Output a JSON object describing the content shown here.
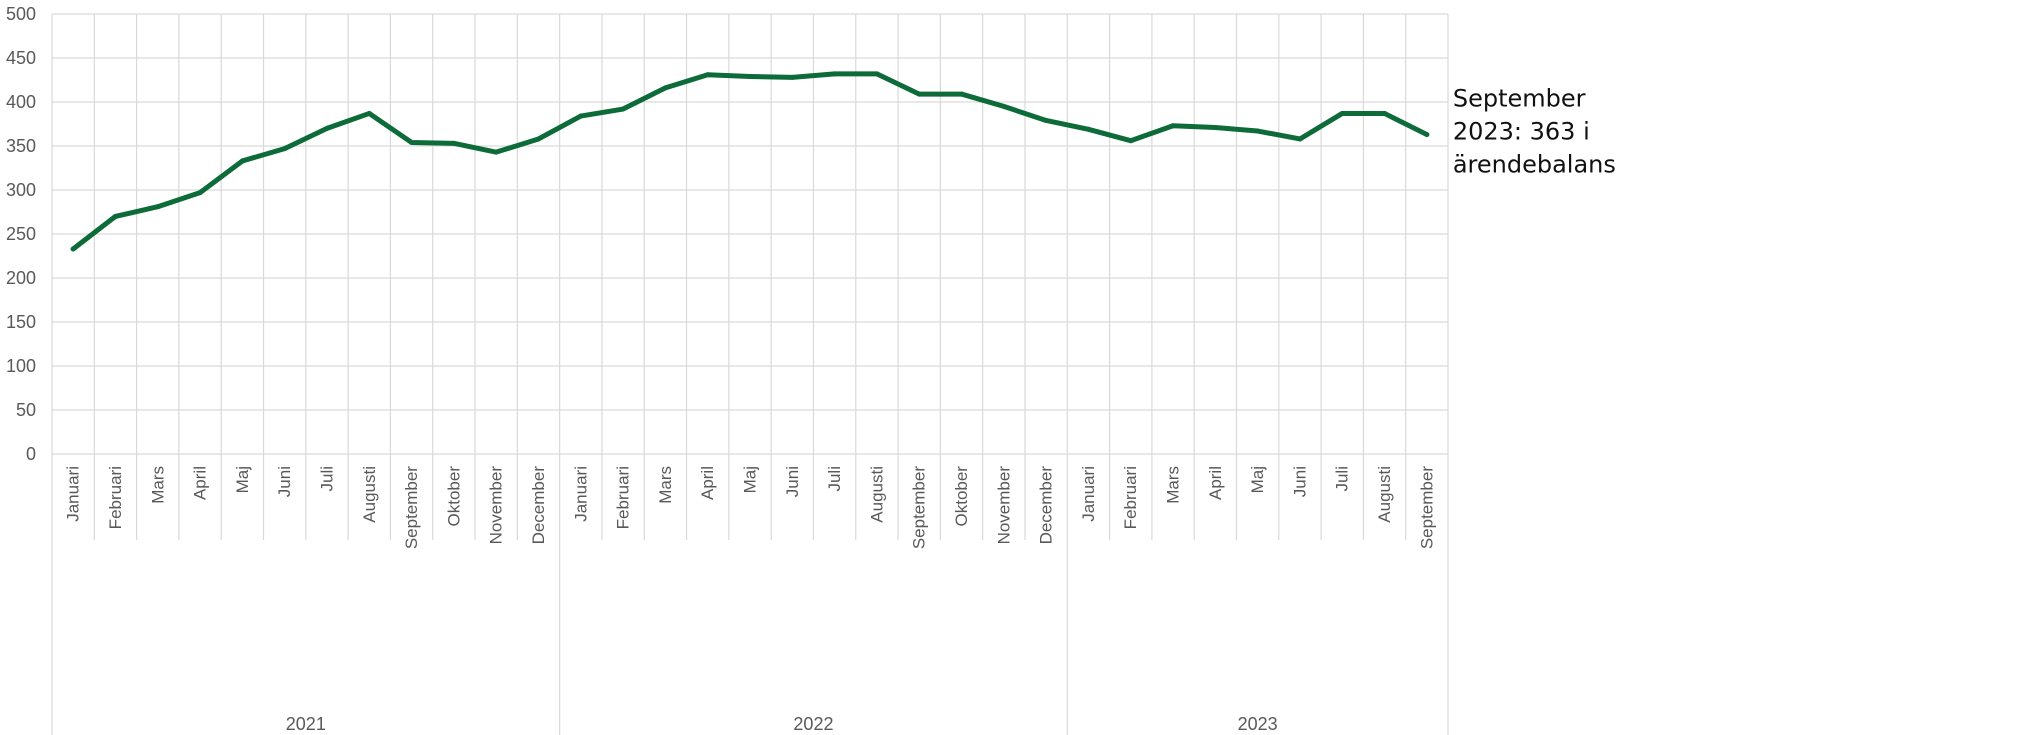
{
  "chart_data": {
    "type": "line",
    "title": "",
    "xlabel": "",
    "ylabel": "",
    "ylim": [
      0,
      500
    ],
    "yticks": [
      0,
      50,
      100,
      150,
      200,
      250,
      300,
      350,
      400,
      450,
      500
    ],
    "grid": true,
    "legend": "none",
    "colors": {
      "line": "#0d6b3a",
      "grid": "#d9d9d9",
      "text": "#595959"
    },
    "groups": [
      {
        "label": "2021",
        "months": [
          "Januari",
          "Februari",
          "Mars",
          "April",
          "Maj",
          "Juni",
          "Juli",
          "Augusti",
          "September",
          "Oktober",
          "November",
          "December"
        ]
      },
      {
        "label": "2022",
        "months": [
          "Januari",
          "Februari",
          "Mars",
          "April",
          "Maj",
          "Juni",
          "Juli",
          "Augusti",
          "September",
          "Oktober",
          "November",
          "December"
        ]
      },
      {
        "label": "2023",
        "months": [
          "Januari",
          "Februari",
          "Mars",
          "April",
          "Maj",
          "Juni",
          "Juli",
          "Augusti",
          "September"
        ]
      }
    ],
    "series": [
      {
        "values": [
          233,
          270,
          281,
          297,
          333,
          347,
          370,
          387,
          354,
          353,
          343,
          358,
          384,
          392,
          416,
          431,
          429,
          428,
          432,
          432,
          409,
          409,
          395,
          379,
          369,
          356,
          373,
          371,
          367,
          358,
          387,
          387,
          363
        ]
      }
    ],
    "annotation": {
      "lines": [
        "September",
        "2023: 363 i",
        "ärendebalans"
      ],
      "point_index": 32
    }
  }
}
